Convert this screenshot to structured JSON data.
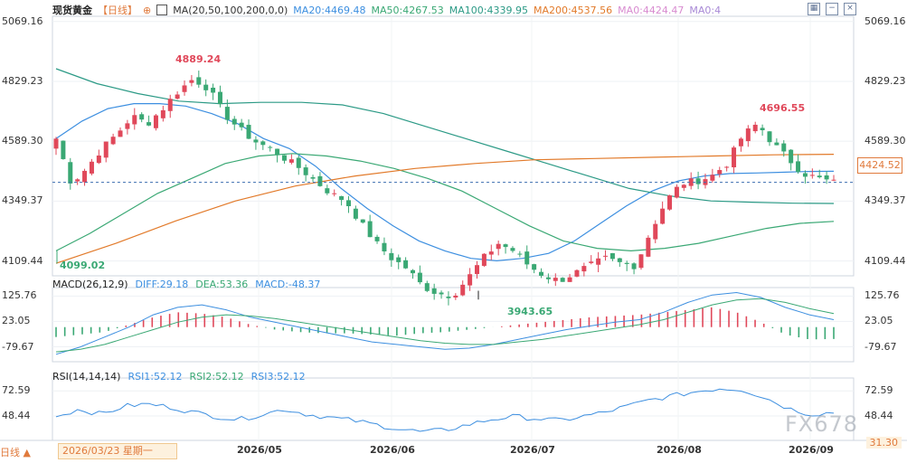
{
  "header": {
    "title": "现货黄金",
    "period": "【日线】",
    "ma_label": "MA(20,50,100,200,0,0)",
    "ma20": "MA20:4469.48",
    "ma50": "MA50:4267.53",
    "ma100": "MA100:4339.95",
    "ma200": "MA200:4537.56",
    "ma0a": "MA0:4424.47",
    "ma0b": "MA0:4"
  },
  "macd_legend": {
    "name": "MACD(26,12,9)",
    "diff": "DIFF:29.18",
    "dea": "DEA:53.36",
    "macd": "MACD:-48.37"
  },
  "rsi_legend": {
    "name": "RSI(14,14,14)",
    "rsi1": "RSI1:52.12",
    "rsi2": "RSI2:52.12",
    "rsi3": "RSI3:52.12"
  },
  "price_tag": "4424.52",
  "date_box": "2026/03/23 星期一",
  "bottom_left": "日线 ▲",
  "bottom_right": "31.30",
  "watermark": "FX678",
  "colors": {
    "up": "#e0485a",
    "down": "#3aa874",
    "ma20": "#3d8fe0",
    "ma50": "#3aa874",
    "ma100": "#2c9a86",
    "ma200": "#e27a2a",
    "axis": "#cfd6df"
  },
  "chart_data": [
    {
      "type": "candlestick",
      "title": "现货黄金 日线",
      "y_ticks": [
        "5069.16",
        "4829.23",
        "4589.30",
        "4349.37",
        "4109.44"
      ],
      "ylim": [
        4050,
        5090
      ],
      "x_ticks": [
        "2026/05",
        "2026/06",
        "2026/07",
        "2026/08",
        "2026/09"
      ],
      "annotations": [
        {
          "label": "4889.24",
          "value": 4889.24,
          "kind": "high"
        },
        {
          "label": "4099.02",
          "value": 4099.02,
          "kind": "low"
        },
        {
          "label": "3943.65",
          "value": 3943.65,
          "kind": "low"
        },
        {
          "label": "4696.55",
          "value": 4696.55,
          "kind": "high"
        }
      ],
      "last_price": 4424.52,
      "close_path": [
        4600,
        4420,
        4480,
        4560,
        4620,
        4690,
        4660,
        4720,
        4790,
        4840,
        4800,
        4700,
        4640,
        4590,
        4560,
        4520,
        4480,
        4430,
        4380,
        4350,
        4260,
        4180,
        4120,
        4080,
        4010,
        3980,
        3970,
        4040,
        4120,
        4180,
        4150,
        4090,
        4050,
        4030,
        4060,
        4090,
        4120,
        4100,
        4090,
        4230,
        4350,
        4420,
        4430,
        4450,
        4500,
        4610,
        4660,
        4580,
        4520,
        4460,
        4440,
        4424
      ],
      "series": [
        {
          "name": "MA20",
          "values": [
            4600,
            4670,
            4720,
            4740,
            4740,
            4730,
            4700,
            4660,
            4600,
            4560,
            4490,
            4400,
            4320,
            4250,
            4190,
            4150,
            4120,
            4110,
            4120,
            4140,
            4190,
            4260,
            4330,
            4390,
            4430,
            4450,
            4460,
            4462,
            4465,
            4468,
            4469
          ]
        },
        {
          "name": "MA50",
          "values": [
            4150,
            4220,
            4300,
            4380,
            4440,
            4500,
            4530,
            4540,
            4530,
            4510,
            4480,
            4440,
            4390,
            4320,
            4250,
            4190,
            4160,
            4150,
            4160,
            4180,
            4210,
            4240,
            4260,
            4268
          ]
        },
        {
          "name": "MA100",
          "values": [
            4880,
            4820,
            4780,
            4750,
            4740,
            4745,
            4745,
            4735,
            4700,
            4650,
            4600,
            4550,
            4500,
            4450,
            4400,
            4370,
            4350,
            4345,
            4341,
            4340
          ]
        },
        {
          "name": "MA200",
          "values": [
            4100,
            4180,
            4270,
            4350,
            4410,
            4450,
            4480,
            4500,
            4515,
            4520,
            4525,
            4530,
            4535,
            4537
          ]
        }
      ]
    },
    {
      "type": "bar",
      "title": "MACD(26,12,9)",
      "y_ticks": [
        "125.76",
        "23.05",
        "-79.67"
      ],
      "ylim": [
        -140,
        160
      ],
      "series": [
        {
          "name": "DIFF",
          "values": [
            -110,
            -80,
            -40,
            0,
            50,
            80,
            90,
            70,
            40,
            20,
            0,
            -20,
            -40,
            -60,
            -70,
            -80,
            -90,
            -85,
            -70,
            -50,
            -30,
            -10,
            5,
            20,
            30,
            60,
            100,
            130,
            140,
            120,
            80,
            50,
            30
          ]
        },
        {
          "name": "DEA",
          "values": [
            -100,
            -90,
            -70,
            -40,
            -10,
            20,
            40,
            50,
            45,
            35,
            20,
            5,
            -10,
            -25,
            -40,
            -55,
            -65,
            -70,
            -70,
            -60,
            -50,
            -35,
            -20,
            -5,
            10,
            30,
            60,
            90,
            110,
            115,
            100,
            75,
            55
          ]
        },
        {
          "name": "MACD",
          "values": [
            -40,
            -30,
            -20,
            10,
            40,
            60,
            55,
            40,
            10,
            -10,
            -20,
            -25,
            -25,
            -30,
            -35,
            -25,
            -20,
            -10,
            0,
            10,
            20,
            30,
            40,
            45,
            50,
            60,
            70,
            80,
            60,
            20,
            -30,
            -50,
            -48
          ]
        }
      ]
    },
    {
      "type": "line",
      "title": "RSI(14,14,14)",
      "y_ticks": [
        "72.59",
        "48.44"
      ],
      "ylim": [
        25,
        85
      ],
      "series": [
        {
          "name": "RSI1",
          "values": [
            48,
            55,
            50,
            58,
            60,
            57,
            52,
            48,
            45,
            50,
            55,
            50,
            47,
            44,
            40,
            36,
            33,
            35,
            40,
            45,
            48,
            46,
            44,
            48,
            52,
            58,
            64,
            68,
            72,
            75,
            74,
            66,
            56,
            50,
            52
          ]
        }
      ]
    }
  ]
}
